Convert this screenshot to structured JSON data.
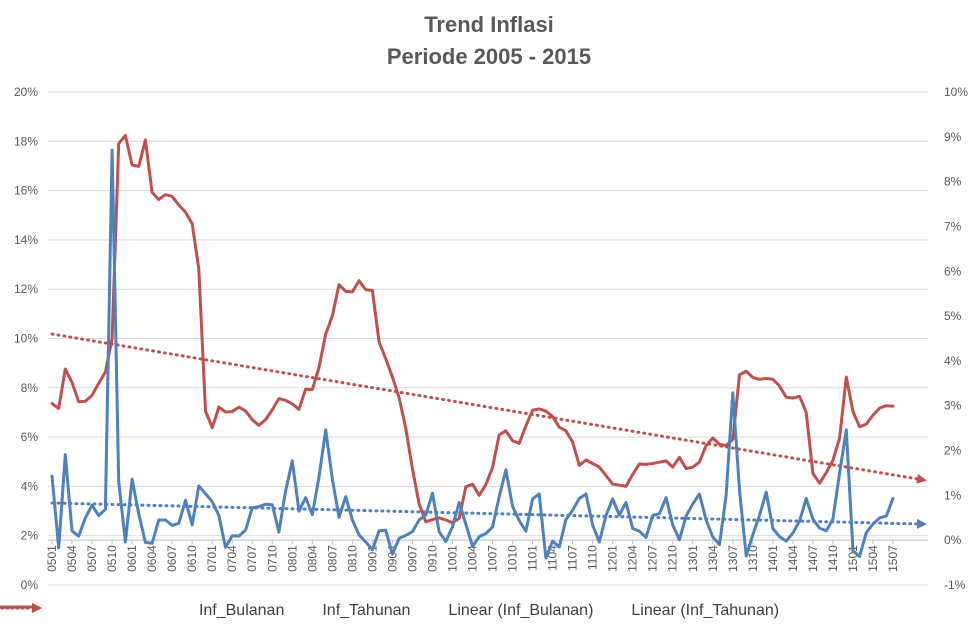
{
  "chart_data": {
    "type": "line",
    "title": "Trend Inflasi",
    "subtitle": "Periode 2005 - 2015",
    "x_tick_labels": [
      "0501",
      "0504",
      "0507",
      "0510",
      "0601",
      "0604",
      "0607",
      "0610",
      "0701",
      "0704",
      "0707",
      "0710",
      "0801",
      "0804",
      "0807",
      "0810",
      "0901",
      "0904",
      "0907",
      "0910",
      "1001",
      "1004",
      "1007",
      "1010",
      "1101",
      "1104",
      "1107",
      "1110",
      "1201",
      "1204",
      "1207",
      "1210",
      "1301",
      "1304",
      "1307",
      "1310",
      "1401",
      "1404",
      "1407",
      "1410",
      "1501",
      "1504",
      "1507"
    ],
    "y_left": {
      "ylim": [
        0,
        20
      ],
      "ticks": [
        "0%",
        "2%",
        "4%",
        "6%",
        "8%",
        "10%",
        "12%",
        "14%",
        "16%",
        "18%",
        "20%"
      ]
    },
    "y_right": {
      "ylim": [
        -1,
        10
      ],
      "ticks": [
        "-1%",
        "0%",
        "1%",
        "2%",
        "3%",
        "4%",
        "5%",
        "6%",
        "7%",
        "8%",
        "9%",
        "10%"
      ]
    },
    "series": [
      {
        "name": "Inf_Bulanan",
        "axis": "right",
        "color": "#4f81bd",
        "values": [
          1.43,
          -0.17,
          1.91,
          0.21,
          0.09,
          0.5,
          0.78,
          0.55,
          0.69,
          8.7,
          1.31,
          -0.04,
          1.36,
          0.58,
          -0.05,
          -0.07,
          0.45,
          0.45,
          0.33,
          0.38,
          0.89,
          0.34,
          1.21,
          1.04,
          0.86,
          0.55,
          -0.16,
          0.1,
          0.09,
          0.23,
          0.72,
          0.75,
          0.8,
          0.79,
          0.18,
          1.1,
          1.77,
          0.65,
          0.95,
          0.57,
          1.41,
          2.46,
          1.37,
          0.51,
          0.97,
          0.45,
          0.12,
          -0.04,
          -0.21,
          0.21,
          0.22,
          -0.31,
          0.04,
          0.11,
          0.19,
          0.45,
          0.56,
          1.05,
          0.19,
          -0.03,
          0.3,
          0.84,
          0.36,
          -0.14,
          0.08,
          0.15,
          0.29,
          0.97,
          1.57,
          0.76,
          0.44,
          0.2,
          0.92,
          1.03,
          -0.4,
          -0.02,
          -0.15,
          0.46,
          0.67,
          0.93,
          1.03,
          0.34,
          -0.04,
          0.55,
          0.92,
          0.56,
          0.84,
          0.26,
          0.2,
          0.06,
          0.55,
          0.59,
          0.95,
          0.34,
          0.01,
          0.54,
          0.81,
          1.03,
          0.45,
          0.07,
          -0.1,
          1.0,
          3.29,
          1.12,
          -0.35,
          0.12,
          0.55,
          1.07,
          0.26,
          0.08,
          -0.02,
          0.16,
          0.43,
          0.93,
          0.47,
          0.27,
          0.21,
          0.47,
          1.5,
          2.46,
          -0.24,
          -0.36,
          0.17,
          0.36,
          0.5,
          0.54,
          0.93
        ],
        "trendline": {
          "name": "Linear (Inf_Bulanan)",
          "start": 0.83,
          "end": 0.36
        }
      },
      {
        "name": "Inf_Tahunan",
        "axis": "right",
        "color": "#c0504d",
        "values": [
          3.05,
          2.94,
          3.82,
          3.52,
          3.09,
          3.1,
          3.23,
          3.5,
          3.75,
          4.5,
          8.85,
          9.03,
          8.37,
          8.34,
          8.93,
          7.76,
          7.6,
          7.71,
          7.67,
          7.48,
          7.32,
          7.06,
          6.05,
          2.88,
          2.51,
          2.97,
          2.86,
          2.87,
          2.97,
          2.88,
          2.69,
          2.56,
          2.69,
          2.91,
          3.16,
          3.12,
          3.04,
          2.92,
          3.37,
          3.36,
          3.85,
          4.6,
          5.0,
          5.7,
          5.55,
          5.54,
          5.79,
          5.59,
          5.57,
          4.42,
          4.05,
          3.64,
          3.18,
          2.49,
          1.6,
          0.81,
          0.41,
          0.46,
          0.5,
          0.45,
          0.39,
          0.49,
          1.19,
          1.25,
          1.0,
          1.24,
          1.62,
          2.35,
          2.44,
          2.22,
          2.16,
          2.55,
          2.9,
          2.93,
          2.88,
          2.76,
          2.52,
          2.44,
          2.19,
          1.67,
          1.79,
          1.71,
          1.63,
          1.44,
          1.25,
          1.23,
          1.2,
          1.47,
          1.7,
          1.69,
          1.71,
          1.74,
          1.77,
          1.63,
          1.85,
          1.6,
          1.63,
          1.74,
          2.11,
          2.28,
          2.14,
          2.11,
          2.25,
          3.69,
          3.77,
          3.63,
          3.59,
          3.61,
          3.59,
          3.44,
          3.19,
          3.17,
          3.21,
          2.85,
          1.49,
          1.27,
          1.51,
          1.78,
          2.28,
          3.64,
          2.87,
          2.53,
          2.59,
          2.79,
          2.95,
          3.0,
          2.99
        ],
        "trendline": {
          "name": "Linear (Inf_Tahunan)",
          "start": 4.6,
          "end": 1.35
        }
      }
    ],
    "grid": true,
    "legend": "bottom"
  }
}
